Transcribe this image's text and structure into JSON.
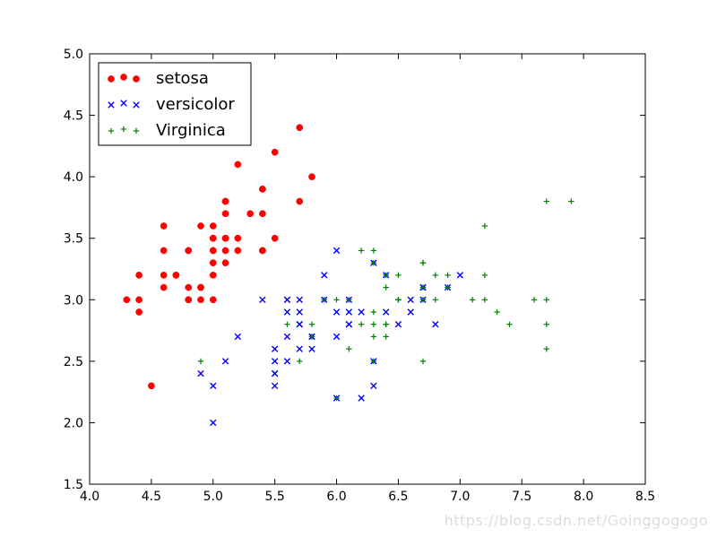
{
  "watermark": "https://blog.csdn.net/Goinggogogo",
  "chart_data": {
    "type": "scatter",
    "title": "",
    "xlabel": "",
    "ylabel": "",
    "xlim": [
      4.0,
      8.5
    ],
    "ylim": [
      1.5,
      5.0
    ],
    "xticks": [
      "4.0",
      "4.5",
      "5.0",
      "5.5",
      "6.0",
      "6.5",
      "7.0",
      "7.5",
      "8.0",
      "8.5"
    ],
    "yticks": [
      "1.5",
      "2.0",
      "2.5",
      "3.0",
      "3.5",
      "4.0",
      "4.5",
      "5.0"
    ],
    "grid": false,
    "legend_position": "top-left",
    "series": [
      {
        "name": "setosa",
        "marker": "circle",
        "color": "#ff0000",
        "points": [
          [
            5.1,
            3.5
          ],
          [
            4.9,
            3.0
          ],
          [
            4.7,
            3.2
          ],
          [
            4.6,
            3.1
          ],
          [
            5.0,
            3.6
          ],
          [
            5.4,
            3.9
          ],
          [
            4.6,
            3.4
          ],
          [
            5.0,
            3.4
          ],
          [
            4.4,
            2.9
          ],
          [
            4.9,
            3.1
          ],
          [
            5.4,
            3.7
          ],
          [
            4.8,
            3.4
          ],
          [
            4.8,
            3.0
          ],
          [
            4.3,
            3.0
          ],
          [
            5.8,
            4.0
          ],
          [
            5.7,
            4.4
          ],
          [
            5.4,
            3.9
          ],
          [
            5.1,
            3.5
          ],
          [
            5.7,
            3.8
          ],
          [
            5.1,
            3.8
          ],
          [
            5.4,
            3.4
          ],
          [
            5.1,
            3.7
          ],
          [
            4.6,
            3.6
          ],
          [
            5.1,
            3.3
          ],
          [
            4.8,
            3.4
          ],
          [
            5.0,
            3.0
          ],
          [
            5.0,
            3.4
          ],
          [
            5.2,
            3.5
          ],
          [
            5.2,
            3.4
          ],
          [
            4.7,
            3.2
          ],
          [
            4.8,
            3.1
          ],
          [
            5.4,
            3.4
          ],
          [
            5.2,
            4.1
          ],
          [
            5.5,
            4.2
          ],
          [
            4.9,
            3.1
          ],
          [
            5.0,
            3.2
          ],
          [
            5.5,
            3.5
          ],
          [
            4.9,
            3.6
          ],
          [
            4.4,
            3.0
          ],
          [
            5.1,
            3.4
          ],
          [
            5.0,
            3.5
          ],
          [
            4.5,
            2.3
          ],
          [
            4.4,
            3.2
          ],
          [
            5.0,
            3.5
          ],
          [
            5.1,
            3.8
          ],
          [
            4.8,
            3.0
          ],
          [
            5.1,
            3.8
          ],
          [
            4.6,
            3.2
          ],
          [
            5.3,
            3.7
          ],
          [
            5.0,
            3.3
          ]
        ]
      },
      {
        "name": "versicolor",
        "marker": "x",
        "color": "#0000ff",
        "points": [
          [
            7.0,
            3.2
          ],
          [
            6.4,
            3.2
          ],
          [
            6.9,
            3.1
          ],
          [
            5.5,
            2.3
          ],
          [
            6.5,
            2.8
          ],
          [
            5.7,
            2.8
          ],
          [
            6.3,
            3.3
          ],
          [
            4.9,
            2.4
          ],
          [
            6.6,
            2.9
          ],
          [
            5.2,
            2.7
          ],
          [
            5.0,
            2.0
          ],
          [
            5.9,
            3.0
          ],
          [
            6.0,
            2.2
          ],
          [
            6.1,
            2.9
          ],
          [
            5.6,
            2.9
          ],
          [
            6.7,
            3.1
          ],
          [
            5.6,
            3.0
          ],
          [
            5.8,
            2.7
          ],
          [
            6.2,
            2.2
          ],
          [
            5.6,
            2.5
          ],
          [
            5.9,
            3.2
          ],
          [
            6.1,
            2.8
          ],
          [
            6.3,
            2.5
          ],
          [
            6.1,
            2.8
          ],
          [
            6.4,
            2.9
          ],
          [
            6.6,
            3.0
          ],
          [
            6.8,
            2.8
          ],
          [
            6.7,
            3.0
          ],
          [
            6.0,
            2.9
          ],
          [
            5.7,
            2.6
          ],
          [
            5.5,
            2.4
          ],
          [
            5.5,
            2.4
          ],
          [
            5.8,
            2.7
          ],
          [
            6.0,
            2.7
          ],
          [
            5.4,
            3.0
          ],
          [
            6.0,
            3.4
          ],
          [
            6.7,
            3.1
          ],
          [
            6.3,
            2.3
          ],
          [
            5.6,
            3.0
          ],
          [
            5.5,
            2.5
          ],
          [
            5.5,
            2.6
          ],
          [
            6.1,
            3.0
          ],
          [
            5.8,
            2.6
          ],
          [
            5.0,
            2.3
          ],
          [
            5.6,
            2.7
          ],
          [
            5.7,
            3.0
          ],
          [
            5.7,
            2.9
          ],
          [
            6.2,
            2.9
          ],
          [
            5.1,
            2.5
          ],
          [
            5.7,
            2.8
          ]
        ]
      },
      {
        "name": "Virginica",
        "marker": "plus",
        "color": "#008000",
        "points": [
          [
            6.3,
            3.3
          ],
          [
            5.8,
            2.7
          ],
          [
            7.1,
            3.0
          ],
          [
            6.3,
            2.9
          ],
          [
            6.5,
            3.0
          ],
          [
            7.6,
            3.0
          ],
          [
            4.9,
            2.5
          ],
          [
            7.3,
            2.9
          ],
          [
            6.7,
            2.5
          ],
          [
            7.2,
            3.6
          ],
          [
            6.5,
            3.2
          ],
          [
            6.4,
            2.7
          ],
          [
            6.8,
            3.0
          ],
          [
            5.7,
            2.5
          ],
          [
            5.8,
            2.8
          ],
          [
            6.4,
            3.2
          ],
          [
            6.5,
            3.0
          ],
          [
            7.7,
            3.8
          ],
          [
            7.7,
            2.6
          ],
          [
            6.0,
            2.2
          ],
          [
            6.9,
            3.2
          ],
          [
            5.6,
            2.8
          ],
          [
            7.7,
            2.8
          ],
          [
            6.3,
            2.7
          ],
          [
            6.7,
            3.3
          ],
          [
            7.2,
            3.2
          ],
          [
            6.2,
            2.8
          ],
          [
            6.1,
            3.0
          ],
          [
            6.4,
            2.8
          ],
          [
            7.2,
            3.0
          ],
          [
            7.4,
            2.8
          ],
          [
            7.9,
            3.8
          ],
          [
            6.4,
            2.8
          ],
          [
            6.3,
            2.8
          ],
          [
            6.1,
            2.6
          ],
          [
            7.7,
            3.0
          ],
          [
            6.3,
            3.4
          ],
          [
            6.4,
            3.1
          ],
          [
            6.0,
            3.0
          ],
          [
            6.9,
            3.1
          ],
          [
            6.7,
            3.1
          ],
          [
            6.9,
            3.1
          ],
          [
            5.8,
            2.7
          ],
          [
            6.8,
            3.2
          ],
          [
            6.7,
            3.3
          ],
          [
            6.7,
            3.0
          ],
          [
            6.3,
            2.5
          ],
          [
            6.5,
            3.0
          ],
          [
            6.2,
            3.4
          ],
          [
            5.9,
            3.0
          ]
        ]
      }
    ]
  }
}
